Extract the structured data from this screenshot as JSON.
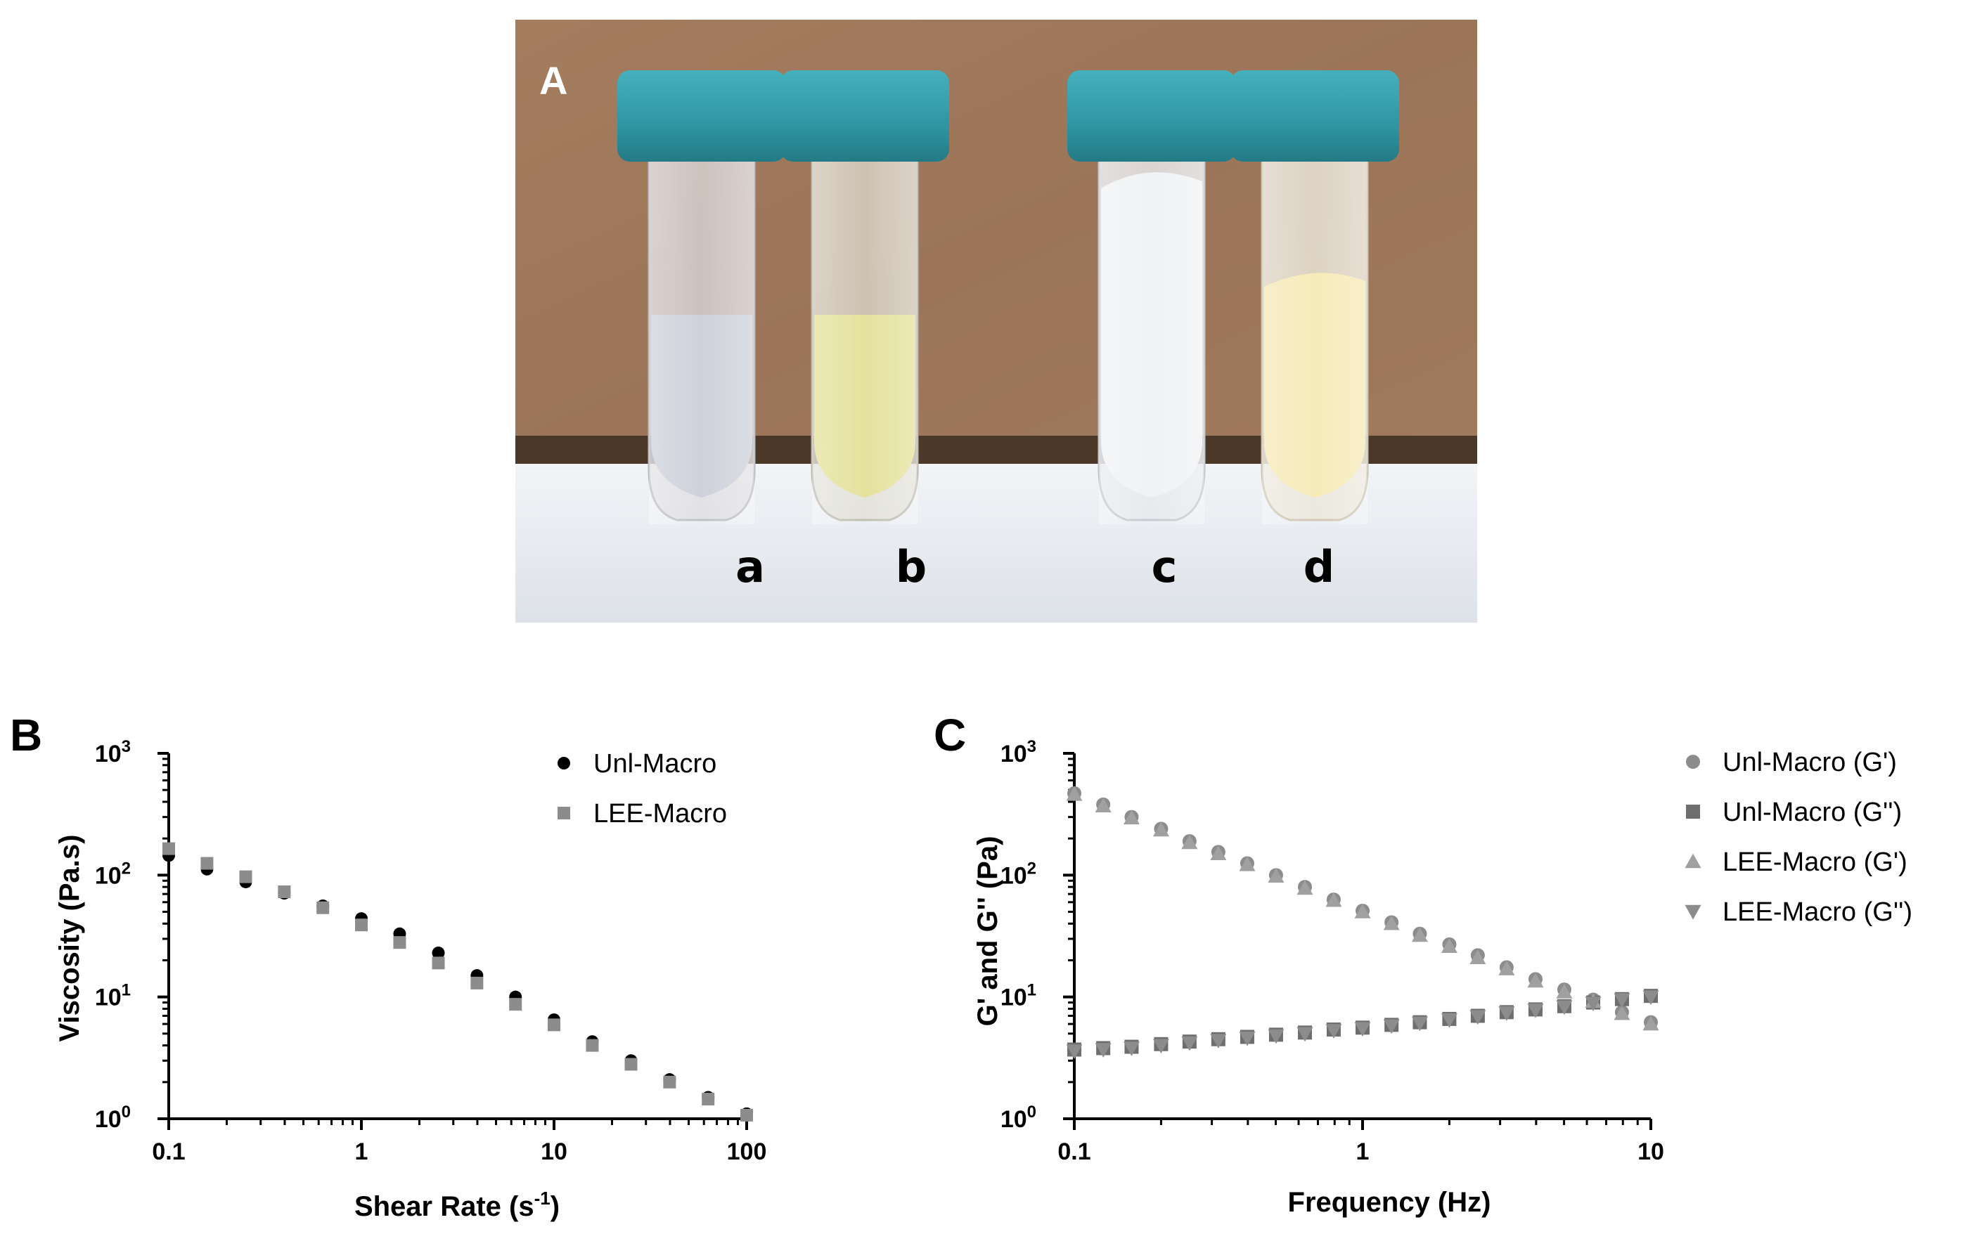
{
  "panels": {
    "a": {
      "label": "A",
      "tube_labels": [
        "a",
        "b",
        "c",
        "d"
      ],
      "colors": {
        "background_board": "#a47c5e",
        "table": "#e9ecf0",
        "cap": "#2e96a2",
        "liquid_a": "#c9ccd6",
        "liquid_b": "#e2de92",
        "liquid_c": "#eef1f3",
        "liquid_d": "#f5e8b0"
      }
    },
    "b": {
      "label": "B"
    },
    "c": {
      "label": "C"
    }
  },
  "chart_data": [
    {
      "type": "scatter",
      "panel": "B",
      "xlabel": "Shear Rate (s",
      "xlabel_sup": "-1",
      "xlabel_end": ")",
      "ylabel": "Viscosity (Pa.s)",
      "xscale": "log",
      "yscale": "log",
      "xlim": [
        0.1,
        100
      ],
      "ylim": [
        1,
        1000
      ],
      "xticks": [
        0.1,
        1,
        10,
        100
      ],
      "xtick_labels": [
        "0.1",
        "1",
        "10",
        "100"
      ],
      "yticks": [
        1,
        10,
        100,
        1000
      ],
      "ytick_labels": [
        {
          "base": "10",
          "exp": "0"
        },
        {
          "base": "10",
          "exp": "1"
        },
        {
          "base": "10",
          "exp": "2"
        },
        {
          "base": "10",
          "exp": "3"
        }
      ],
      "legend_position": "top-right",
      "x": [
        0.1,
        0.158,
        0.251,
        0.398,
        0.631,
        1,
        1.58,
        2.51,
        3.98,
        6.31,
        10,
        15.8,
        25.1,
        39.8,
        63.1,
        100
      ],
      "series": [
        {
          "name": "Unl-Macro",
          "marker": "circle",
          "color": "#000000",
          "values": [
            145,
            112,
            88,
            71,
            56,
            44,
            33,
            23,
            15,
            10,
            6.5,
            4.3,
            3.0,
            2.1,
            1.5,
            1.1
          ]
        },
        {
          "name": "LEE-Macro",
          "marker": "square",
          "color": "#8c8c8c",
          "values": [
            165,
            125,
            97,
            73,
            54,
            39,
            28,
            19,
            13,
            8.7,
            5.9,
            4.0,
            2.8,
            2.0,
            1.45,
            1.07
          ]
        }
      ]
    },
    {
      "type": "scatter",
      "panel": "C",
      "xlabel": "Frequency (Hz)",
      "ylabel": "G' and G'' (Pa)",
      "xscale": "log",
      "yscale": "log",
      "xlim": [
        0.1,
        10
      ],
      "ylim": [
        1,
        1000
      ],
      "xticks": [
        0.1,
        1,
        10
      ],
      "xtick_labels": [
        "0.1",
        "1",
        "10"
      ],
      "yticks": [
        1,
        10,
        100,
        1000
      ],
      "ytick_labels": [
        {
          "base": "10",
          "exp": "0"
        },
        {
          "base": "10",
          "exp": "1"
        },
        {
          "base": "10",
          "exp": "2"
        },
        {
          "base": "10",
          "exp": "3"
        }
      ],
      "legend_position": "top-right",
      "x": [
        0.1,
        0.126,
        0.158,
        0.2,
        0.251,
        0.316,
        0.398,
        0.501,
        0.631,
        0.794,
        1,
        1.26,
        1.58,
        2,
        2.51,
        3.16,
        3.98,
        5.01,
        6.31,
        7.94,
        10
      ],
      "series": [
        {
          "name": "Unl-Macro (G')",
          "marker": "circle",
          "color": "#8c8c8c",
          "values": [
            470,
            380,
            300,
            240,
            190,
            155,
            125,
            100,
            80,
            63,
            51,
            41,
            33,
            27,
            22,
            17.5,
            14,
            11.5,
            9.5,
            7.5,
            6.2
          ]
        },
        {
          "name": "Unl-Macro (G'')",
          "marker": "square",
          "color": "#6e6e6e",
          "values": [
            3.7,
            3.8,
            3.9,
            4.1,
            4.3,
            4.5,
            4.7,
            4.9,
            5.1,
            5.4,
            5.6,
            5.9,
            6.2,
            6.6,
            7.0,
            7.5,
            7.9,
            8.4,
            9.0,
            9.6,
            10.2
          ]
        },
        {
          "name": "LEE-Macro (G')",
          "marker": "triangle-up",
          "color": "#a0a0a0",
          "values": [
            460,
            370,
            295,
            235,
            185,
            150,
            122,
            98,
            78,
            62,
            50,
            40,
            32,
            26,
            21,
            17,
            13.5,
            11,
            9.2,
            7.3,
            6.0
          ]
        },
        {
          "name": "LEE-Macro (G'')",
          "marker": "triangle-down",
          "color": "#8c8c8c",
          "values": [
            3.6,
            3.7,
            3.8,
            4.0,
            4.2,
            4.4,
            4.6,
            4.8,
            5.0,
            5.3,
            5.5,
            5.8,
            6.1,
            6.5,
            6.9,
            7.4,
            7.8,
            8.3,
            8.9,
            9.5,
            10.0
          ]
        }
      ]
    }
  ]
}
